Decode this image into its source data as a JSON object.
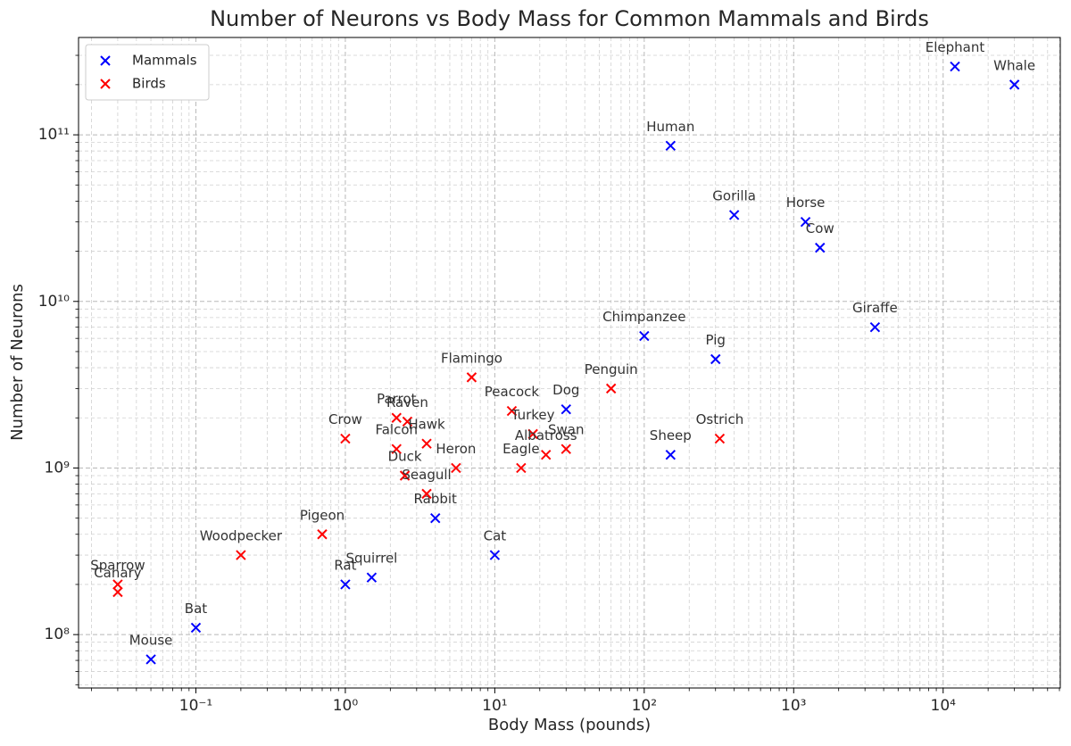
{
  "chart_data": {
    "type": "scatter",
    "title": "Number of Neurons vs Body Mass for Common Mammals and Birds",
    "x_label": "Body Mass (pounds)",
    "y_label": "Number of Neurons",
    "x_scale": "log",
    "y_scale": "log",
    "grid": true,
    "legend_position": "upper left",
    "xlim": [
      0.0164,
      60800
    ],
    "ylim": [
      47800000.0,
      384000000000.0
    ],
    "xticks": [
      {
        "value": 0.1,
        "label": "10⁻¹"
      },
      {
        "value": 1,
        "label": "10⁰"
      },
      {
        "value": 10,
        "label": "10¹"
      },
      {
        "value": 100,
        "label": "10²"
      },
      {
        "value": 1000,
        "label": "10³"
      },
      {
        "value": 10000,
        "label": "10⁴"
      }
    ],
    "yticks": [
      {
        "value": 100000000.0,
        "label": "10⁸"
      },
      {
        "value": 1000000000.0,
        "label": "10⁹"
      },
      {
        "value": 10000000000.0,
        "label": "10¹⁰"
      },
      {
        "value": 100000000000.0,
        "label": "10¹¹"
      }
    ],
    "xminorticks": [
      0.02,
      0.03,
      0.04,
      0.05,
      0.06,
      0.07,
      0.08,
      0.09,
      0.2,
      0.3,
      0.4,
      0.5,
      0.6,
      0.7,
      0.8,
      0.9,
      2,
      3,
      4,
      5,
      6,
      7,
      8,
      9,
      20,
      30,
      40,
      50,
      60,
      70,
      80,
      90,
      200,
      300,
      400,
      500,
      600,
      700,
      800,
      900,
      2000,
      3000,
      4000,
      5000,
      6000,
      7000,
      8000,
      9000,
      20000,
      30000,
      40000,
      50000,
      60000
    ],
    "yminorticks": [
      50000000.0,
      60000000.0,
      70000000.0,
      80000000.0,
      90000000.0,
      200000000.0,
      300000000.0,
      400000000.0,
      500000000.0,
      600000000.0,
      700000000.0,
      800000000.0,
      900000000.0,
      2000000000.0,
      3000000000.0,
      4000000000.0,
      5000000000.0,
      6000000000.0,
      7000000000.0,
      8000000000.0,
      9000000000.0,
      20000000000.0,
      30000000000.0,
      40000000000.0,
      50000000000.0,
      60000000000.0,
      70000000000.0,
      80000000000.0,
      90000000000.0,
      200000000000.0,
      300000000000.0
    ],
    "series": [
      {
        "name": "Mammals",
        "color": "#0000ff",
        "labels": [
          "Elephant",
          "Whale",
          "Human",
          "Gorilla",
          "Horse",
          "Cow",
          "Giraffe",
          "Chimpanzee",
          "Pig",
          "Dog",
          "Sheep",
          "Rabbit",
          "Cat",
          "Squirrel",
          "Rat",
          "Bat",
          "Mouse"
        ],
        "x": [
          12000,
          30000,
          150,
          400,
          1200,
          1500,
          3500,
          100,
          300,
          30,
          150,
          4,
          10,
          1.5,
          1,
          0.1,
          0.05
        ],
        "values": [
          257000000000.0,
          200000000000.0,
          86000000000.0,
          33000000000.0,
          30000000000.0,
          21000000000.0,
          7000000000.0,
          6200000000.0,
          4500000000.0,
          2250000000.0,
          1200000000.0,
          500000000.0,
          300000000.0,
          220000000.0,
          200000000.0,
          110000000.0,
          71000000.0
        ]
      },
      {
        "name": "Birds",
        "color": "#ff0000",
        "labels": [
          "Sparrow",
          "Canary",
          "Woodpecker",
          "Pigeon",
          "Crow",
          "Parrot",
          "Raven",
          "Falcon",
          "Hawk",
          "Duck",
          "Seagull",
          "Heron",
          "Flamingo",
          "Peacock",
          "Turkey",
          "Albatross",
          "Swan",
          "Eagle",
          "Penguin",
          "Ostrich"
        ],
        "x": [
          0.03,
          0.03,
          0.2,
          0.7,
          1,
          2.2,
          2.6,
          2.2,
          3.5,
          2.5,
          3.5,
          5.5,
          7,
          13,
          18,
          22,
          30,
          15,
          60,
          320
        ],
        "values": [
          200000000.0,
          180000000.0,
          300000000.0,
          400000000.0,
          1500000000.0,
          2000000000.0,
          1900000000.0,
          1300000000.0,
          1400000000.0,
          900000000.0,
          700000000.0,
          1000000000.0,
          3500000000.0,
          2200000000.0,
          1600000000.0,
          1200000000.0,
          1300000000.0,
          1000000000.0,
          3000000000.0,
          1500000000.0
        ]
      }
    ]
  }
}
